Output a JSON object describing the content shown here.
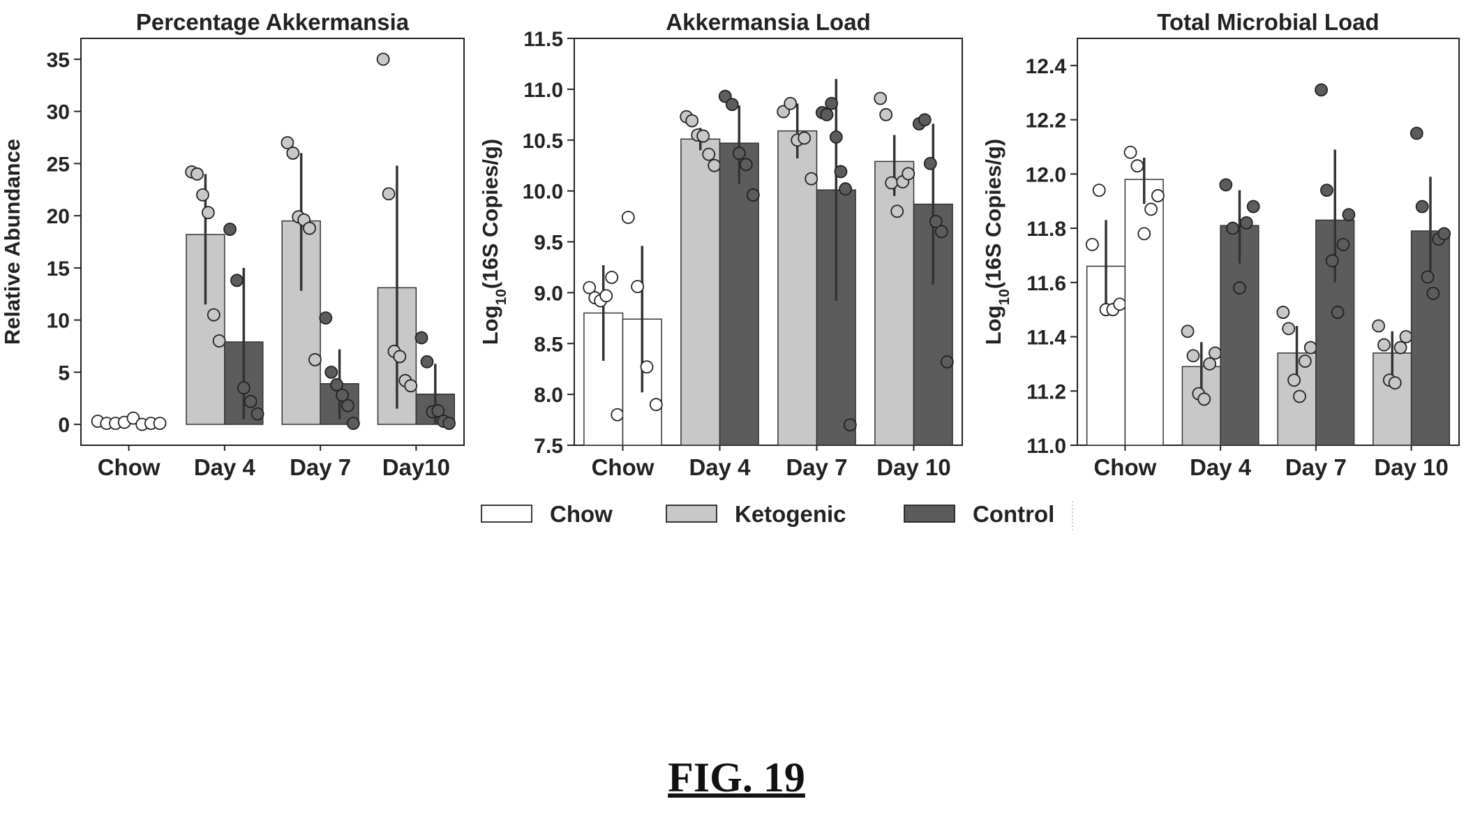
{
  "caption": "FIG. 19",
  "colors": {
    "Chow": "#ffffff",
    "Ketogenic": "#c8c8c8",
    "Control": "#5c5c5c",
    "ink": "#222222"
  },
  "legend": [
    {
      "name": "Chow",
      "color": "#ffffff"
    },
    {
      "name": "Ketogenic",
      "color": "#c8c8c8"
    },
    {
      "name": "Control",
      "color": "#5c5c5c"
    }
  ],
  "chart_data": [
    {
      "type": "bar",
      "title": "Percentage Akkermansia",
      "ylabel": "Relative Abundance",
      "ylim": [
        -2,
        37
      ],
      "yticks": [
        0,
        5,
        10,
        15,
        20,
        25,
        30,
        35
      ],
      "categories": [
        "Chow",
        "Day 4",
        "Day 7",
        "Day10"
      ],
      "bars": [
        {
          "category": "Chow",
          "group": "Chow",
          "value": 0.0,
          "err": null,
          "points": [
            0.3,
            0.1,
            0.1,
            0.2,
            0.6,
            0.0,
            0.1,
            0.1
          ]
        },
        {
          "category": "Day 4",
          "group": "Ketogenic",
          "value": 18.2,
          "err": [
            11.5,
            24.0
          ],
          "points": [
            24.2,
            24.0,
            22.0,
            20.3,
            10.5,
            8.0
          ]
        },
        {
          "category": "Day 4",
          "group": "Control",
          "value": 7.9,
          "err": [
            0.5,
            15.0
          ],
          "points": [
            18.7,
            13.8,
            3.5,
            2.2,
            1.0
          ]
        },
        {
          "category": "Day 7",
          "group": "Ketogenic",
          "value": 19.5,
          "err": [
            12.8,
            26.0
          ],
          "points": [
            27.0,
            26.0,
            19.9,
            19.6,
            18.8,
            6.2
          ]
        },
        {
          "category": "Day 7",
          "group": "Control",
          "value": 3.9,
          "err": [
            0.5,
            7.2
          ],
          "points": [
            10.2,
            5.0,
            3.8,
            2.8,
            1.8,
            0.1
          ]
        },
        {
          "category": "Day10",
          "group": "Ketogenic",
          "value": 13.1,
          "err": [
            1.5,
            24.8
          ],
          "points": [
            35.0,
            22.1,
            7.0,
            6.5,
            4.2,
            3.7
          ]
        },
        {
          "category": "Day10",
          "group": "Control",
          "value": 2.9,
          "err": [
            0.0,
            5.8
          ],
          "points": [
            8.3,
            6.0,
            1.2,
            1.3,
            0.3,
            0.1
          ]
        }
      ]
    },
    {
      "type": "bar",
      "title": "Akkermansia Load",
      "ylabel": "Log10(16S Copies/g)",
      "ylim": [
        7.5,
        11.5
      ],
      "yticks": [
        7.5,
        8.0,
        8.5,
        9.0,
        9.5,
        10.0,
        10.5,
        11.0,
        11.5
      ],
      "categories": [
        "Chow",
        "Day 4",
        "Day 7",
        "Day 10"
      ],
      "bars": [
        {
          "category": "Chow",
          "group": "Chow",
          "value": 8.8,
          "err": [
            8.33,
            9.27
          ],
          "points": [
            9.05,
            8.95,
            8.92,
            8.97,
            9.15,
            7.8
          ]
        },
        {
          "category": "Chow",
          "group": "Chow",
          "value": 8.74,
          "err": [
            8.02,
            9.46
          ],
          "points": [
            9.74,
            9.06,
            8.27,
            7.9
          ]
        },
        {
          "category": "Day 4",
          "group": "Ketogenic",
          "value": 10.51,
          "err": [
            10.4,
            10.62
          ],
          "points": [
            10.73,
            10.69,
            10.55,
            10.54,
            10.36,
            10.25
          ]
        },
        {
          "category": "Day 4",
          "group": "Control",
          "value": 10.47,
          "err": [
            10.07,
            10.84
          ],
          "points": [
            10.93,
            10.85,
            10.37,
            10.26,
            9.96
          ]
        },
        {
          "category": "Day 7",
          "group": "Ketogenic",
          "value": 10.59,
          "err": [
            10.32,
            10.86
          ],
          "points": [
            10.78,
            10.86,
            10.5,
            10.52,
            10.12
          ]
        },
        {
          "category": "Day 7",
          "group": "Control",
          "value": 10.01,
          "err": [
            8.92,
            11.1
          ],
          "points": [
            10.77,
            10.75,
            10.86,
            10.53,
            10.19,
            10.02,
            7.7
          ]
        },
        {
          "category": "Day 10",
          "group": "Ketogenic",
          "value": 10.29,
          "err": [
            9.95,
            10.55
          ],
          "points": [
            10.91,
            10.75,
            10.08,
            9.8,
            10.09,
            10.17
          ]
        },
        {
          "category": "Day 10",
          "group": "Control",
          "value": 9.87,
          "err": [
            9.08,
            10.66
          ],
          "points": [
            10.66,
            10.7,
            10.27,
            9.7,
            9.6,
            8.32
          ]
        }
      ]
    },
    {
      "type": "bar",
      "title": "Total Microbial Load",
      "ylabel": "Log10(16S Copies/g)",
      "ylim": [
        11.0,
        12.5
      ],
      "yticks": [
        11.0,
        11.2,
        11.4,
        11.6,
        11.8,
        12.0,
        12.2,
        12.4
      ],
      "categories": [
        "Chow",
        "Day 4",
        "Day 7",
        "Day 10"
      ],
      "bars": [
        {
          "category": "Chow",
          "group": "Chow",
          "value": 11.66,
          "err": [
            11.5,
            11.83
          ],
          "points": [
            11.74,
            11.94,
            11.5,
            11.5,
            11.52
          ]
        },
        {
          "category": "Chow",
          "group": "Chow",
          "value": 11.98,
          "err": [
            11.89,
            12.06
          ],
          "points": [
            12.08,
            12.03,
            11.78,
            11.87,
            11.92
          ]
        },
        {
          "category": "Day 4",
          "group": "Ketogenic",
          "value": 11.29,
          "err": [
            11.2,
            11.38
          ],
          "points": [
            11.42,
            11.33,
            11.19,
            11.17,
            11.3,
            11.34
          ]
        },
        {
          "category": "Day 4",
          "group": "Control",
          "value": 11.81,
          "err": [
            11.67,
            11.94
          ],
          "points": [
            11.96,
            11.8,
            11.58,
            11.82,
            11.88
          ]
        },
        {
          "category": "Day 7",
          "group": "Ketogenic",
          "value": 11.34,
          "err": [
            11.25,
            11.44
          ],
          "points": [
            11.49,
            11.43,
            11.24,
            11.18,
            11.31,
            11.36
          ]
        },
        {
          "category": "Day 7",
          "group": "Control",
          "value": 11.83,
          "err": [
            11.6,
            12.09
          ],
          "points": [
            12.31,
            11.94,
            11.68,
            11.49,
            11.74,
            11.85
          ]
        },
        {
          "category": "Day 10",
          "group": "Ketogenic",
          "value": 11.34,
          "err": [
            11.26,
            11.42
          ],
          "points": [
            11.44,
            11.37,
            11.24,
            11.23,
            11.36,
            11.4
          ]
        },
        {
          "category": "Day 10",
          "group": "Control",
          "value": 11.79,
          "err": [
            11.6,
            11.99
          ],
          "points": [
            12.15,
            11.88,
            11.62,
            11.56,
            11.76,
            11.78
          ]
        }
      ]
    }
  ]
}
